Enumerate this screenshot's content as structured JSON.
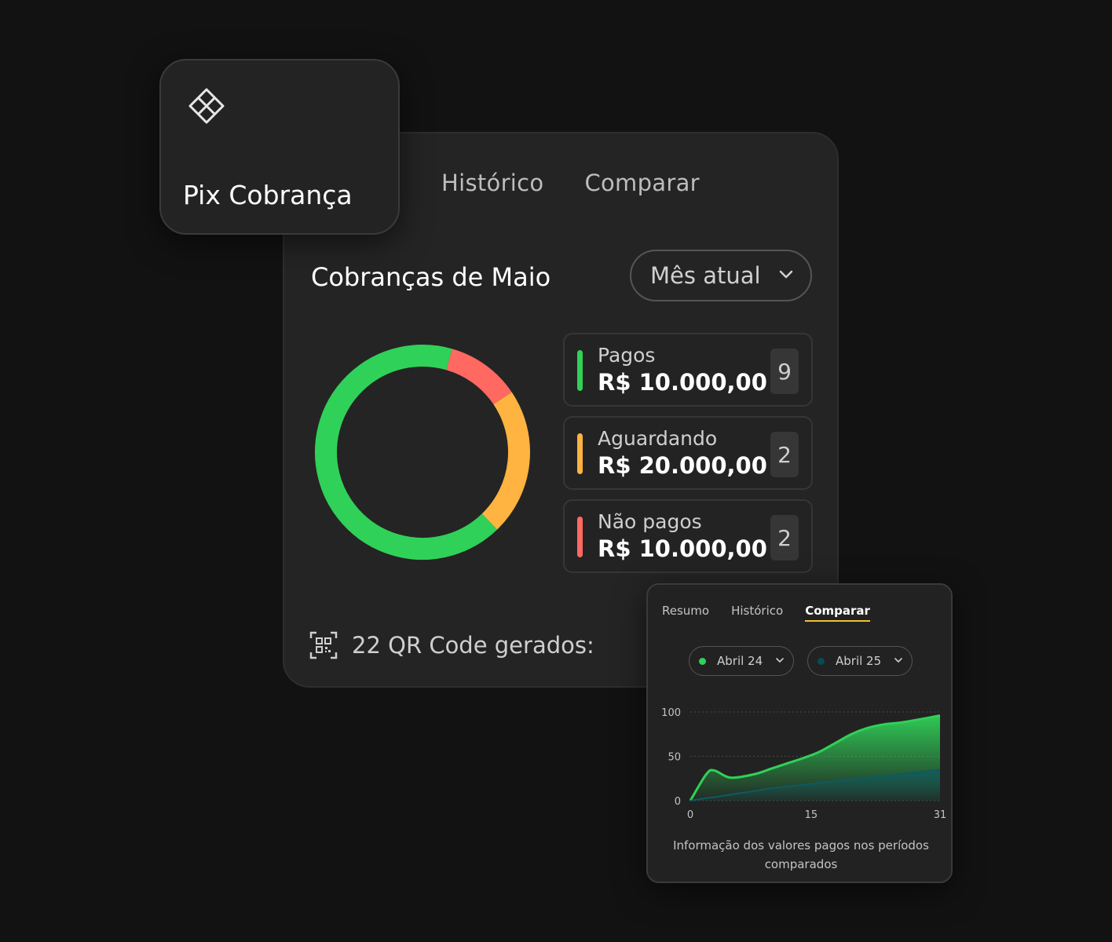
{
  "main": {
    "tabs": [
      {
        "label": "Histórico"
      },
      {
        "label": "Comparar"
      }
    ],
    "title": "Cobranças de Maio",
    "period_select": {
      "value": "Mês atual"
    },
    "statuses": [
      {
        "name": "Pagos",
        "amount": "R$ 10.000,00",
        "count": "9",
        "color": "#30d158"
      },
      {
        "name": "Aguardando",
        "amount": "R$ 20.000,00",
        "count": "2",
        "color": "#ffb340"
      },
      {
        "name": "Não pagos",
        "amount": "R$ 10.000,00",
        "count": "2",
        "color": "#ff6961"
      }
    ],
    "donut": {
      "segments": [
        {
          "status": "Pagos",
          "fraction": 0.6,
          "color": "#30d158"
        },
        {
          "status": "Não pagos",
          "fraction": 0.1,
          "color": "#ff6961"
        },
        {
          "status": "Aguardando",
          "fraction": 0.2,
          "color": "#ffb340"
        }
      ]
    },
    "qr_text": "22 QR Code gerados:"
  },
  "pix_card": {
    "label": "Pix Cobrança",
    "icon": "pix-icon"
  },
  "compare_card": {
    "tabs": [
      {
        "label": "Resumo"
      },
      {
        "label": "Histórico"
      },
      {
        "label": "Comparar",
        "active": true
      }
    ],
    "periods": [
      {
        "label": "Abril 24",
        "color": "#30d158"
      },
      {
        "label": "Abril 25",
        "color": "#0a4a52"
      }
    ],
    "caption": "Informação dos valores pagos nos períodos comparados"
  },
  "chart_data": {
    "type": "area",
    "x": [
      0,
      2,
      3,
      5,
      8,
      10,
      12,
      14,
      16,
      18,
      20,
      22,
      24,
      26,
      28,
      31
    ],
    "series": [
      {
        "name": "Abril 24",
        "color": "#30d158",
        "values": [
          0,
          30,
          34,
          26,
          30,
          36,
          42,
          48,
          55,
          65,
          75,
          82,
          86,
          88,
          91,
          96
        ]
      },
      {
        "name": "Abril 25",
        "color": "#0d5a63",
        "values": [
          0,
          3,
          4,
          7,
          11,
          14,
          16,
          18,
          20,
          22,
          24,
          26,
          28,
          30,
          32,
          35
        ]
      }
    ],
    "ylim": [
      0,
      100
    ],
    "xlim": [
      0,
      31
    ],
    "yticks": [
      "0",
      "50",
      "100"
    ],
    "xticks": [
      "0",
      "15",
      "31"
    ],
    "grid": true
  }
}
